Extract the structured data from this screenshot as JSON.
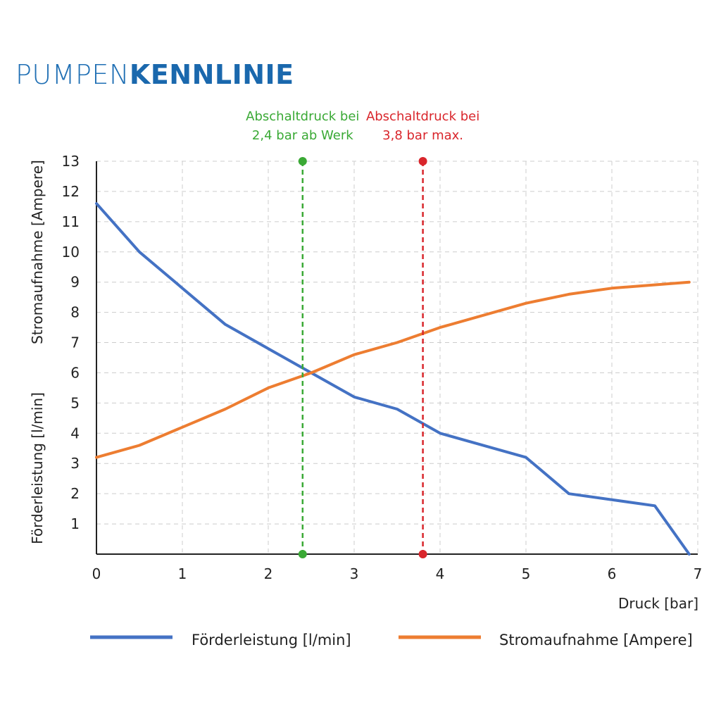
{
  "title": {
    "light": "PUMPEN",
    "bold": "KENNLINIE"
  },
  "colors": {
    "title": "#1f6fb4",
    "blue": "#4472c4",
    "orange": "#ed7d31",
    "green": "#3aa935",
    "red": "#d9262c",
    "grid": "#cccccc"
  },
  "chart_data": {
    "type": "line",
    "xlabel": "Druck [bar]",
    "ylabel_top": "Stromaufnahme [Ampere]",
    "ylabel_bottom": "Förderleistung [l/min]",
    "xlim": [
      0,
      7
    ],
    "ylim": [
      0,
      13
    ],
    "x_ticks": [
      "0",
      "1",
      "2",
      "3",
      "4",
      "5",
      "6",
      "7"
    ],
    "y_ticks": [
      "1",
      "2",
      "3",
      "4",
      "5",
      "6",
      "7",
      "8",
      "9",
      "10",
      "11",
      "12",
      "13"
    ],
    "grid": true,
    "series": [
      {
        "name": "Förderleistung [l/min]",
        "color": "#4472c4",
        "points": [
          [
            0,
            11.6
          ],
          [
            0.5,
            10.0
          ],
          [
            1.5,
            7.6
          ],
          [
            2.5,
            6.0
          ],
          [
            3,
            5.2
          ],
          [
            3.5,
            4.8
          ],
          [
            4,
            4.0
          ],
          [
            5,
            3.2
          ],
          [
            5.5,
            2.0
          ],
          [
            6.5,
            1.6
          ],
          [
            6.9,
            0.0
          ]
        ]
      },
      {
        "name": "Stromaufnahme [Ampere]",
        "color": "#ed7d31",
        "points": [
          [
            0,
            3.2
          ],
          [
            0.5,
            3.6
          ],
          [
            1.5,
            4.8
          ],
          [
            2,
            5.5
          ],
          [
            2.5,
            6.0
          ],
          [
            3,
            6.6
          ],
          [
            3.5,
            7.0
          ],
          [
            4,
            7.5
          ],
          [
            5,
            8.3
          ],
          [
            5.5,
            8.6
          ],
          [
            6,
            8.8
          ],
          [
            6.9,
            9.0
          ]
        ]
      }
    ],
    "markers": [
      {
        "x": 2.4,
        "label_line1": "Abschaltdruck bei",
        "label_line2": "2,4 bar ab Werk",
        "color": "#3aa935"
      },
      {
        "x": 3.8,
        "label_line1": "Abschaltdruck bei",
        "label_line2": "3,8 bar max.",
        "color": "#d9262c"
      }
    ]
  },
  "legend": [
    {
      "label": "Förderleistung [l/min]",
      "color": "#4472c4"
    },
    {
      "label": "Stromaufnahme [Ampere]",
      "color": "#ed7d31"
    }
  ]
}
